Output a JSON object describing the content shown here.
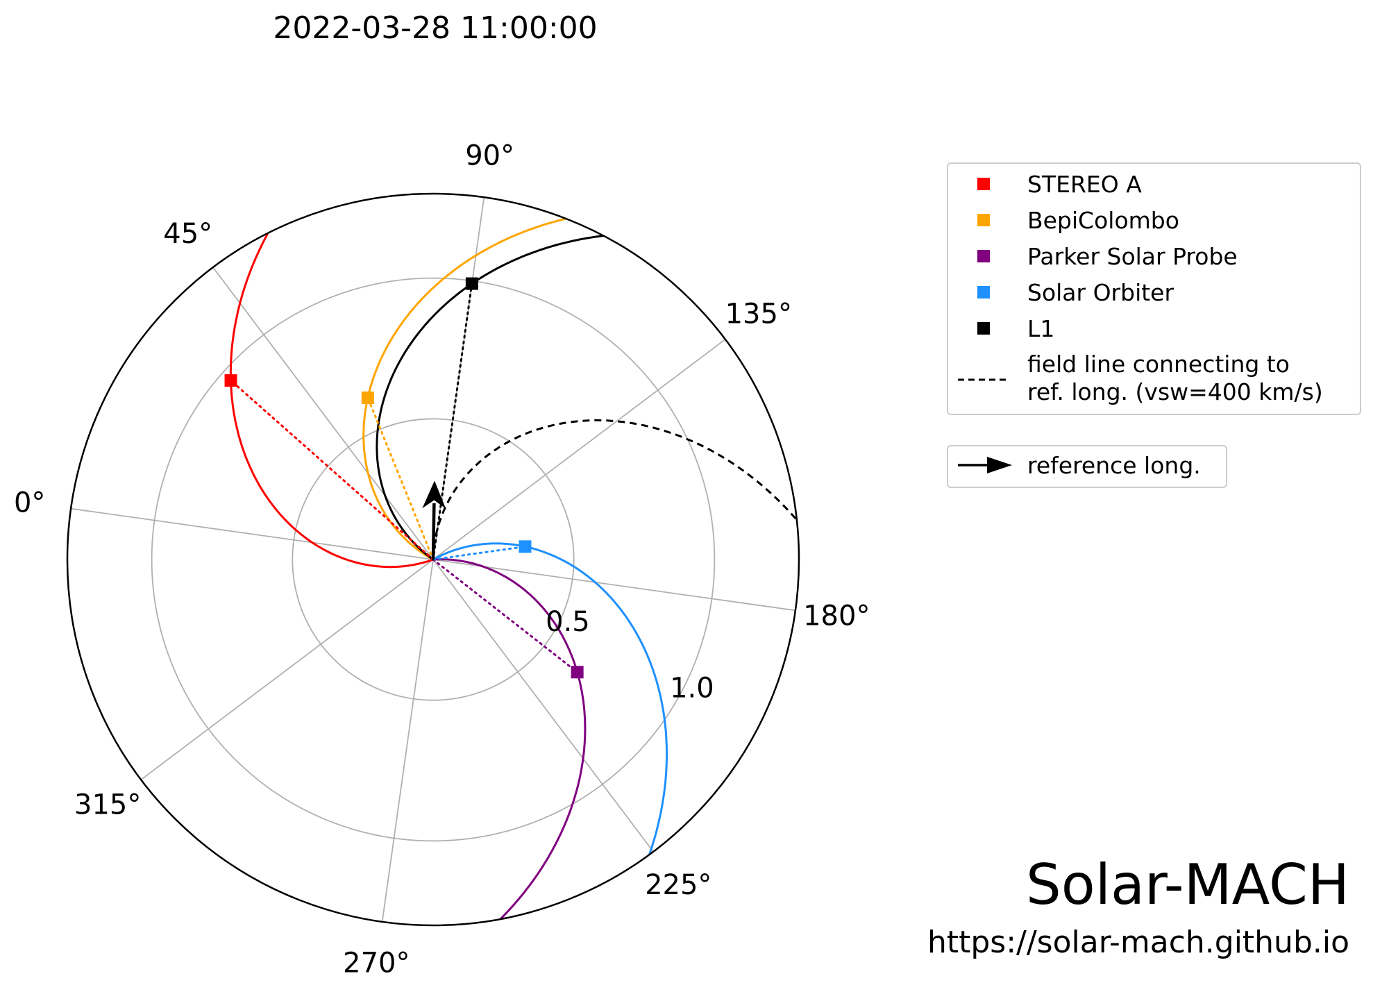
{
  "title": "2022-03-28 11:00:00",
  "colors": {
    "STEREO A": "#ff0000",
    "BepiColombo": "#ffa500",
    "Parker Solar Probe": "#800080",
    "Solar Orbiter": "#1e90ff",
    "L1": "#000000",
    "grid": "#b0b0b0"
  },
  "legend": {
    "items": [
      {
        "label": "STEREO A",
        "color": "#ff0000"
      },
      {
        "label": "BepiColombo",
        "color": "#ffa500"
      },
      {
        "label": "Parker Solar Probe",
        "color": "#800080"
      },
      {
        "label": "Solar Orbiter",
        "color": "#1e90ff"
      },
      {
        "label": "L1",
        "color": "#000000"
      }
    ],
    "field_line_label_1": "field line connecting to",
    "field_line_label_2": "ref. long. (vsw=400 km/s)",
    "reference_label": "reference long."
  },
  "branding": {
    "name": "Solar-MACH",
    "url": "https://solar-mach.github.io"
  },
  "chart_data": {
    "type": "polar",
    "title": "2022-03-28 11:00:00",
    "theta_direction": "clockwise",
    "theta_ticks": [
      "0°",
      "45°",
      "90°",
      "135°",
      "180°",
      "225°",
      "270°",
      "315°"
    ],
    "r_ticks": [
      "0.5",
      "1.0"
    ],
    "r_max": 1.3,
    "reference_longitude_deg": 83,
    "vsw_km_s": 400,
    "series": [
      {
        "name": "STEREO A",
        "longitude_deg": 33.5,
        "r_au": 0.96,
        "vsw_km_s": 400
      },
      {
        "name": "BepiColombo",
        "longitude_deg": 60,
        "r_au": 0.62,
        "vsw_km_s": 400
      },
      {
        "name": "Parker Solar Probe",
        "longitude_deg": 210,
        "r_au": 0.65,
        "vsw_km_s": 400
      },
      {
        "name": "Solar Orbiter",
        "longitude_deg": 164,
        "r_au": 0.33,
        "vsw_km_s": 400
      },
      {
        "name": "L1",
        "longitude_deg": 90,
        "r_au": 0.99,
        "vsw_km_s": 400
      }
    ]
  }
}
